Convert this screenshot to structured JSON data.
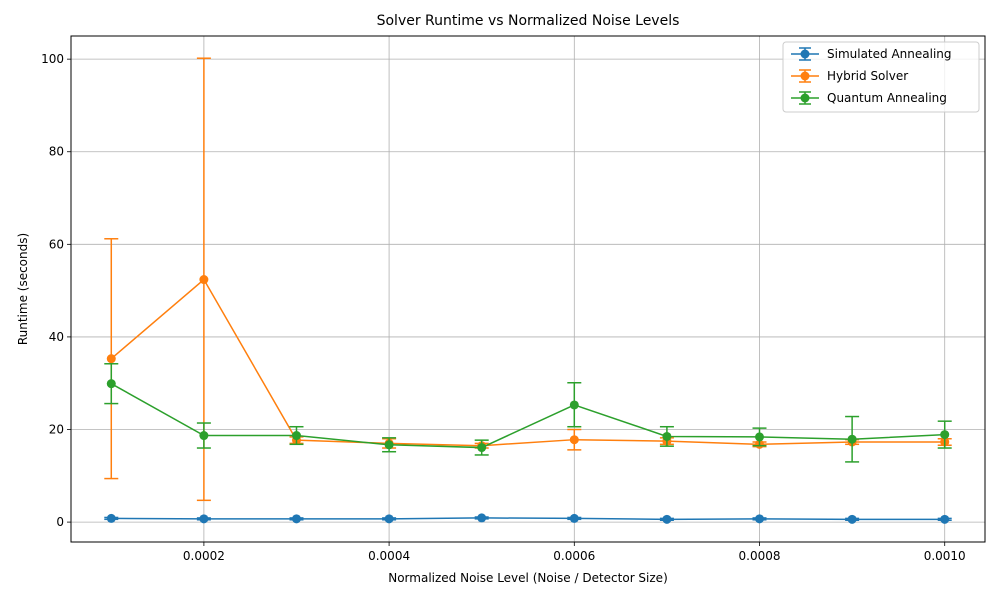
{
  "chart_data": {
    "type": "line",
    "title": "Solver Runtime vs Normalized Noise Levels",
    "xlabel": "Normalized Noise Level (Noise / Detector Size)",
    "ylabel": "Runtime (seconds)",
    "xlim": [
      5.65e-05,
      0.0010435
    ],
    "ylim": [
      -4.3,
      105.0
    ],
    "xticks": [
      0.0002,
      0.0004,
      0.0006,
      0.0008,
      0.001
    ],
    "xtick_labels": [
      "0.0002",
      "0.0004",
      "0.0006",
      "0.0008",
      "0.0010"
    ],
    "yticks": [
      0,
      20,
      40,
      60,
      80,
      100
    ],
    "ytick_labels": [
      "0",
      "20",
      "40",
      "60",
      "80",
      "100"
    ],
    "grid": true,
    "legend_position": "top-right",
    "x": [
      0.0001,
      0.0002,
      0.0003,
      0.0004,
      0.0005,
      0.0006,
      0.0007,
      0.0008,
      0.0009,
      0.001
    ],
    "series": [
      {
        "name": "Simulated Annealing",
        "color": "#1f77b4",
        "values": [
          0.8,
          0.7,
          0.7,
          0.7,
          0.9,
          0.8,
          0.6,
          0.7,
          0.6,
          0.6
        ],
        "err_low": [
          0.6,
          0.5,
          0.5,
          0.5,
          0.7,
          0.6,
          0.4,
          0.5,
          0.4,
          0.4
        ],
        "err_high": [
          1.0,
          0.9,
          0.9,
          0.9,
          1.1,
          1.0,
          0.8,
          0.9,
          0.8,
          0.8
        ]
      },
      {
        "name": "Hybrid Solver",
        "color": "#ff7f0e",
        "values": [
          35.3,
          52.4,
          17.7,
          17.0,
          16.5,
          17.8,
          17.5,
          16.8,
          17.3,
          17.3
        ],
        "err_low": [
          9.4,
          4.7,
          17.0,
          16.0,
          16.0,
          15.6,
          16.8,
          16.3,
          16.8,
          16.6
        ],
        "err_high": [
          61.2,
          100.2,
          18.4,
          18.0,
          17.0,
          20.0,
          18.2,
          17.3,
          17.8,
          18.0
        ]
      },
      {
        "name": "Quantum Annealing",
        "color": "#2ca02c",
        "values": [
          29.9,
          18.7,
          18.7,
          16.7,
          16.1,
          25.3,
          18.5,
          18.4,
          17.9,
          18.9
        ],
        "err_low": [
          25.6,
          16.0,
          16.8,
          15.2,
          14.5,
          20.6,
          16.4,
          16.5,
          13.0,
          16.0
        ],
        "err_high": [
          34.2,
          21.4,
          20.6,
          18.2,
          17.7,
          30.1,
          20.6,
          20.3,
          22.8,
          21.8
        ]
      }
    ]
  }
}
